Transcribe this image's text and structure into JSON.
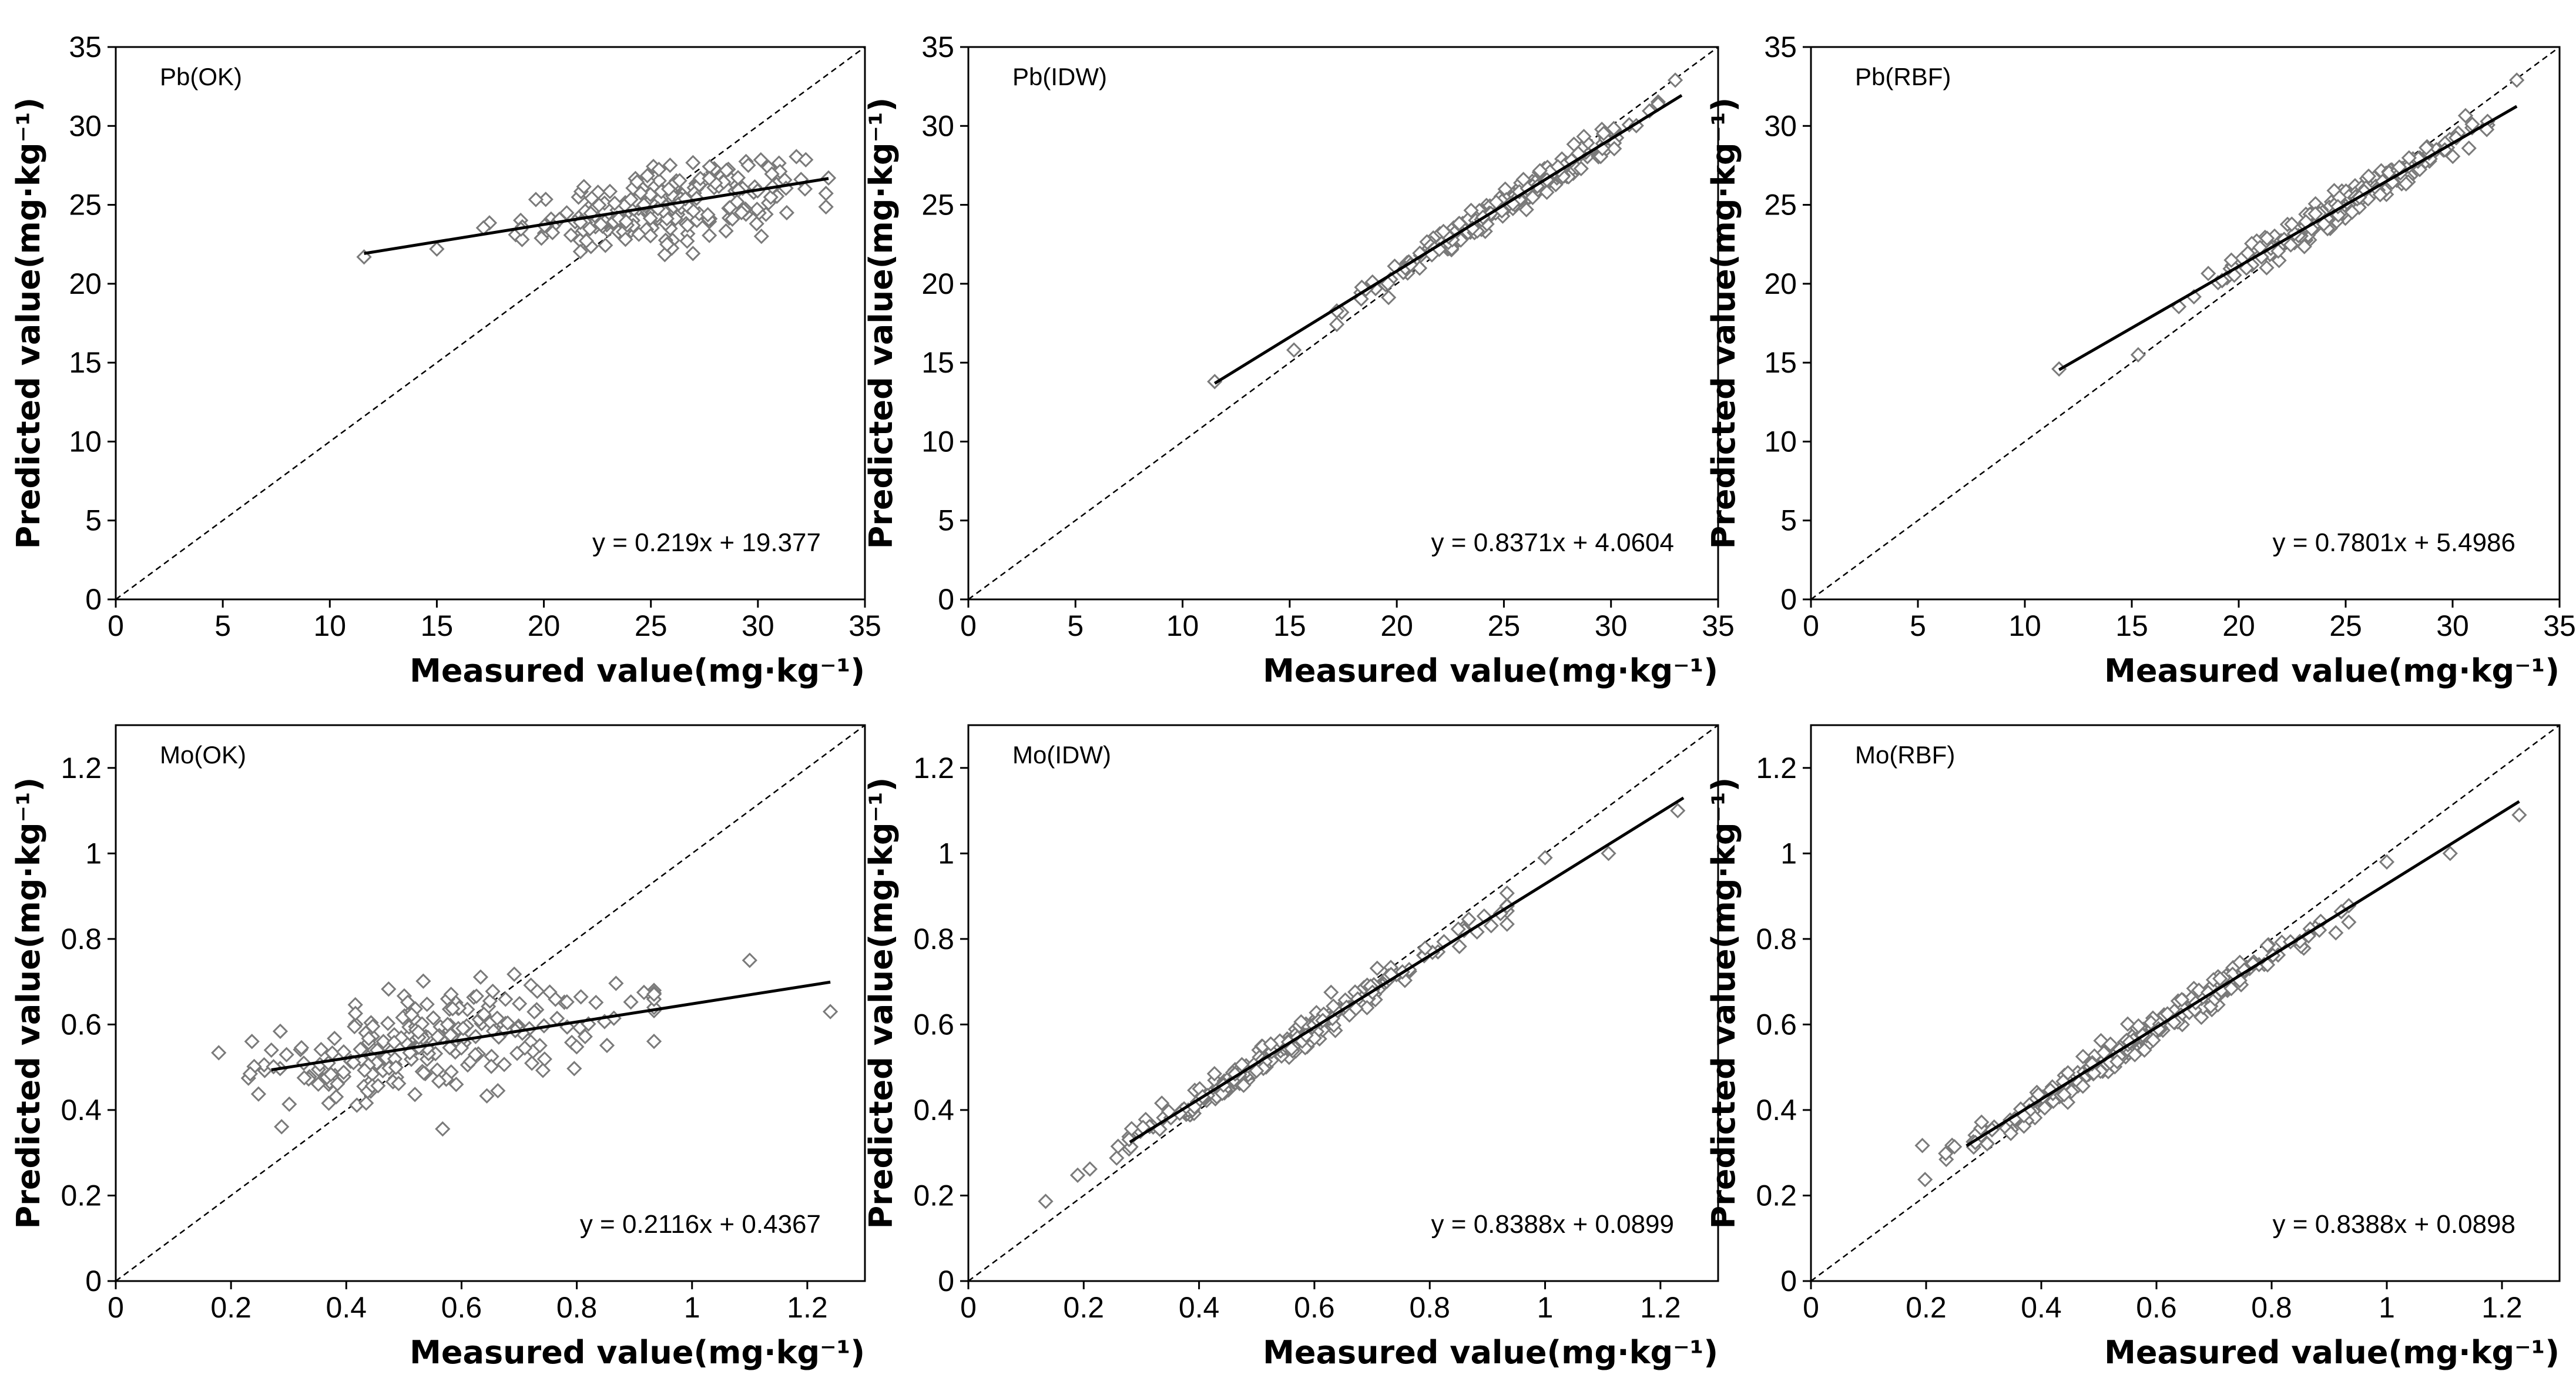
{
  "chart_data": [
    {
      "type": "scatter",
      "title": "Pb(OK)",
      "xlabel": "Measured value(mg·kg⁻¹)",
      "ylabel": "Predicted value(mg·kg⁻¹)",
      "xlim": [
        0,
        35
      ],
      "ylim": [
        0,
        35
      ],
      "xticks": [
        "0",
        "5",
        "10",
        "15",
        "20",
        "25",
        "30",
        "35"
      ],
      "yticks": [
        "0",
        "5",
        "10",
        "15",
        "20",
        "25",
        "30",
        "35"
      ],
      "fit": {
        "slope": 0.219,
        "intercept": 19.377,
        "x_range": [
          11.6,
          33.3
        ]
      },
      "reference_line": "1:1",
      "equation": "y = 0.219x + 19.377",
      "points_summary": {
        "x_center": 25.5,
        "x_spread": 3.2,
        "pred_slope": 0.219,
        "pred_intercept": 19.377,
        "noise": 1.1,
        "outliers": [
          [
            11.6,
            21.7
          ],
          [
            15.0,
            22.2
          ],
          [
            33.3,
            26.7
          ]
        ]
      }
    },
    {
      "type": "scatter",
      "title": "Pb(IDW)",
      "xlabel": "Measured value(mg·kg⁻¹)",
      "ylabel": "Predicted value(mg·kg⁻¹)",
      "xlim": [
        0,
        35
      ],
      "ylim": [
        0,
        35
      ],
      "xticks": [
        "0",
        "5",
        "10",
        "15",
        "20",
        "25",
        "30",
        "35"
      ],
      "yticks": [
        "0",
        "5",
        "10",
        "15",
        "20",
        "25",
        "30",
        "35"
      ],
      "fit": {
        "slope": 0.8371,
        "intercept": 4.0604,
        "x_range": [
          11.5,
          33.3
        ]
      },
      "reference_line": "1:1",
      "equation": "y = 0.8371x + 4.0604",
      "points_summary": {
        "x_center": 25.0,
        "x_spread": 3.0,
        "pred_slope": 0.8371,
        "pred_intercept": 4.0604,
        "noise": 0.45,
        "outliers": [
          [
            11.5,
            13.8
          ],
          [
            15.2,
            15.8
          ],
          [
            33.0,
            32.9
          ]
        ]
      }
    },
    {
      "type": "scatter",
      "title": "Pb(RBF)",
      "xlabel": "Measured value(mg·kg⁻¹)",
      "ylabel": "Predicted value(mg·kg⁻¹)",
      "xlim": [
        0,
        35
      ],
      "ylim": [
        0,
        35
      ],
      "xticks": [
        "0",
        "5",
        "10",
        "15",
        "20",
        "25",
        "30",
        "35"
      ],
      "yticks": [
        "0",
        "5",
        "10",
        "15",
        "20",
        "25",
        "30",
        "35"
      ],
      "fit": {
        "slope": 0.7801,
        "intercept": 5.4986,
        "x_range": [
          11.6,
          33.0
        ]
      },
      "reference_line": "1:1",
      "equation": "y = 0.7801x + 5.4986",
      "points_summary": {
        "x_center": 25.0,
        "x_spread": 3.0,
        "pred_slope": 0.7801,
        "pred_intercept": 5.4986,
        "noise": 0.5,
        "outliers": [
          [
            11.6,
            14.6
          ],
          [
            15.3,
            15.5
          ],
          [
            33.0,
            32.9
          ]
        ]
      }
    },
    {
      "type": "scatter",
      "title": "Mo(OK)",
      "xlabel": "Measured value(mg·kg⁻¹)",
      "ylabel": "Predicted value(mg·kg⁻¹)",
      "xlim": [
        0,
        1.3
      ],
      "ylim": [
        0,
        1.3
      ],
      "xticks": [
        "0",
        "0.2",
        "0.4",
        "0.6",
        "0.8",
        "1",
        "1.2"
      ],
      "yticks": [
        "0",
        "0.2",
        "0.4",
        "0.6",
        "0.8",
        "1",
        "1.2"
      ],
      "fit": {
        "slope": 0.2116,
        "intercept": 0.4367,
        "x_range": [
          0.27,
          1.24
        ]
      },
      "reference_line": "1:1",
      "equation": "y = 0.2116x + 0.4367",
      "points_summary": {
        "x_center": 0.55,
        "x_spread": 0.16,
        "pred_slope": 0.2116,
        "pred_intercept": 0.4367,
        "noise": 0.06,
        "outliers": [
          [
            1.24,
            0.63
          ],
          [
            1.1,
            0.75
          ],
          [
            0.27,
            0.54
          ]
        ]
      }
    },
    {
      "type": "scatter",
      "title": "Mo(IDW)",
      "xlabel": "Measured value(mg·kg⁻¹)",
      "ylabel": "Predicted value(mg·kg⁻¹)",
      "xlim": [
        0,
        1.3
      ],
      "ylim": [
        0,
        1.3
      ],
      "xticks": [
        "0",
        "0.2",
        "0.4",
        "0.6",
        "0.8",
        "1",
        "1.2"
      ],
      "yticks": [
        "0",
        "0.2",
        "0.4",
        "0.6",
        "0.8",
        "1",
        "1.2"
      ],
      "fit": {
        "slope": 0.8388,
        "intercept": 0.0899,
        "x_range": [
          0.28,
          1.24
        ]
      },
      "reference_line": "1:1",
      "equation": "y = 0.8388x + 0.0899",
      "points_summary": {
        "x_center": 0.55,
        "x_spread": 0.16,
        "pred_slope": 0.8388,
        "pred_intercept": 0.0899,
        "noise": 0.018,
        "outliers": [
          [
            1.23,
            1.1
          ],
          [
            1.11,
            1.0
          ],
          [
            1.0,
            0.99
          ]
        ]
      }
    },
    {
      "type": "scatter",
      "title": "Mo(RBF)",
      "xlabel": "Measured value(mg·kg⁻¹)",
      "ylabel": "Predicted value(mg·kg⁻¹)",
      "xlim": [
        0,
        1.3
      ],
      "ylim": [
        0,
        1.3
      ],
      "xticks": [
        "0",
        "0.2",
        "0.4",
        "0.6",
        "0.8",
        "1",
        "1.2"
      ],
      "yticks": [
        "0",
        "0.2",
        "0.4",
        "0.6",
        "0.8",
        "1",
        "1.2"
      ],
      "fit": {
        "slope": 0.8388,
        "intercept": 0.0898,
        "x_range": [
          0.27,
          1.23
        ]
      },
      "reference_line": "1:1",
      "equation": "y = 0.8388x + 0.0898",
      "points_summary": {
        "x_center": 0.55,
        "x_spread": 0.16,
        "pred_slope": 0.8388,
        "pred_intercept": 0.0898,
        "noise": 0.018,
        "outliers": [
          [
            1.23,
            1.09
          ],
          [
            1.11,
            1.0
          ],
          [
            1.0,
            0.98
          ]
        ]
      }
    }
  ]
}
